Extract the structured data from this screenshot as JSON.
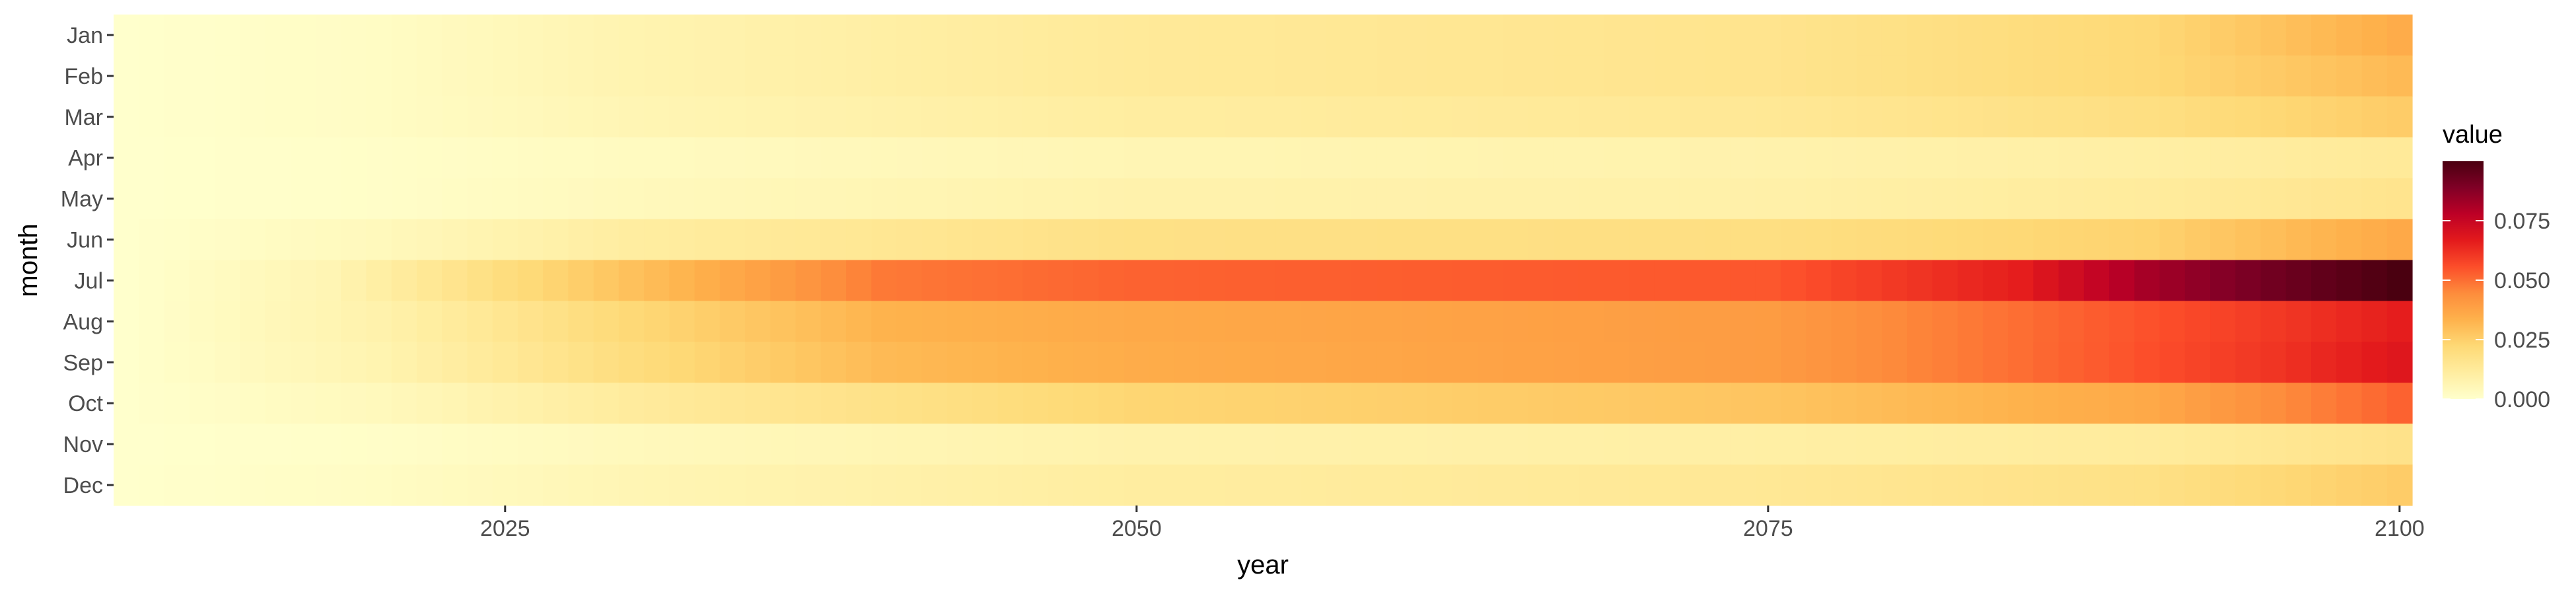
{
  "chart_data": {
    "type": "heatmap",
    "title": "",
    "xlabel": "year",
    "ylabel": "month",
    "x_range": [
      2010,
      2100
    ],
    "x_ticks": [
      2025,
      2050,
      2075,
      2100
    ],
    "y_categories": [
      "Jan",
      "Feb",
      "Mar",
      "Apr",
      "May",
      "Jun",
      "Jul",
      "Aug",
      "Sep",
      "Oct",
      "Nov",
      "Dec"
    ],
    "rows": [
      {
        "month": "Jan",
        "anchors": [
          [
            2010,
            0.0
          ],
          [
            2020,
            0.002
          ],
          [
            2030,
            0.007
          ],
          [
            2050,
            0.013
          ],
          [
            2075,
            0.016
          ],
          [
            2090,
            0.022
          ],
          [
            2100,
            0.035
          ]
        ]
      },
      {
        "month": "Feb",
        "anchors": [
          [
            2010,
            0.0
          ],
          [
            2020,
            0.002
          ],
          [
            2030,
            0.007
          ],
          [
            2050,
            0.013
          ],
          [
            2075,
            0.016
          ],
          [
            2090,
            0.022
          ],
          [
            2100,
            0.031
          ]
        ]
      },
      {
        "month": "Mar",
        "anchors": [
          [
            2010,
            0.0
          ],
          [
            2020,
            0.002
          ],
          [
            2030,
            0.006
          ],
          [
            2050,
            0.011
          ],
          [
            2075,
            0.014
          ],
          [
            2090,
            0.019
          ],
          [
            2100,
            0.026
          ]
        ]
      },
      {
        "month": "Apr",
        "anchors": [
          [
            2010,
            0.0
          ],
          [
            2020,
            0.001
          ],
          [
            2030,
            0.003
          ],
          [
            2050,
            0.006
          ],
          [
            2075,
            0.008
          ],
          [
            2090,
            0.01
          ],
          [
            2100,
            0.013
          ]
        ]
      },
      {
        "month": "May",
        "anchors": [
          [
            2010,
            0.0
          ],
          [
            2020,
            0.001
          ],
          [
            2030,
            0.004
          ],
          [
            2050,
            0.008
          ],
          [
            2075,
            0.009
          ],
          [
            2090,
            0.012
          ],
          [
            2100,
            0.016
          ]
        ]
      },
      {
        "month": "Jun",
        "anchors": [
          [
            2010,
            0.0
          ],
          [
            2020,
            0.004
          ],
          [
            2030,
            0.011
          ],
          [
            2050,
            0.018
          ],
          [
            2075,
            0.019
          ],
          [
            2090,
            0.024
          ],
          [
            2100,
            0.036
          ]
        ]
      },
      {
        "month": "Jul",
        "anchors": [
          [
            2010,
            0.0
          ],
          [
            2018,
            0.006
          ],
          [
            2025,
            0.02
          ],
          [
            2035,
            0.038
          ],
          [
            2040,
            0.048
          ],
          [
            2050,
            0.052
          ],
          [
            2075,
            0.054
          ],
          [
            2085,
            0.066
          ],
          [
            2090,
            0.082
          ],
          [
            2095,
            0.092
          ],
          [
            2100,
            0.1
          ]
        ]
      },
      {
        "month": "Aug",
        "anchors": [
          [
            2010,
            0.0
          ],
          [
            2020,
            0.008
          ],
          [
            2030,
            0.022
          ],
          [
            2040,
            0.033
          ],
          [
            2050,
            0.036
          ],
          [
            2075,
            0.04
          ],
          [
            2085,
            0.05
          ],
          [
            2095,
            0.06
          ],
          [
            2100,
            0.066
          ]
        ]
      },
      {
        "month": "Sep",
        "anchors": [
          [
            2010,
            0.0
          ],
          [
            2020,
            0.007
          ],
          [
            2030,
            0.02
          ],
          [
            2040,
            0.031
          ],
          [
            2050,
            0.035
          ],
          [
            2075,
            0.04
          ],
          [
            2085,
            0.05
          ],
          [
            2095,
            0.061
          ],
          [
            2100,
            0.068
          ]
        ]
      },
      {
        "month": "Oct",
        "anchors": [
          [
            2010,
            0.0
          ],
          [
            2020,
            0.004
          ],
          [
            2030,
            0.012
          ],
          [
            2050,
            0.023
          ],
          [
            2075,
            0.028
          ],
          [
            2090,
            0.036
          ],
          [
            2100,
            0.052
          ]
        ]
      },
      {
        "month": "Nov",
        "anchors": [
          [
            2010,
            0.0
          ],
          [
            2020,
            0.001
          ],
          [
            2030,
            0.004
          ],
          [
            2050,
            0.008
          ],
          [
            2075,
            0.01
          ],
          [
            2090,
            0.012
          ],
          [
            2100,
            0.017
          ]
        ]
      },
      {
        "month": "Dec",
        "anchors": [
          [
            2010,
            0.0
          ],
          [
            2020,
            0.002
          ],
          [
            2030,
            0.006
          ],
          [
            2050,
            0.011
          ],
          [
            2075,
            0.014
          ],
          [
            2090,
            0.018
          ],
          [
            2100,
            0.026
          ]
        ]
      }
    ],
    "legend": {
      "title": "value",
      "position": "right",
      "range": [
        0.0,
        0.1
      ],
      "ticks": [
        0.0,
        0.025,
        0.05,
        0.075
      ],
      "tick_labels": [
        "0.000",
        "0.025",
        "0.050",
        "0.075"
      ]
    },
    "colorscale": [
      "#ffffcc",
      "#ffeda0",
      "#fed976",
      "#feb24c",
      "#fd8d3c",
      "#fc4e2a",
      "#e31a1c",
      "#bd0026",
      "#800026",
      "#4a0010"
    ],
    "panel_background": "#ebebeb",
    "grid": false
  }
}
